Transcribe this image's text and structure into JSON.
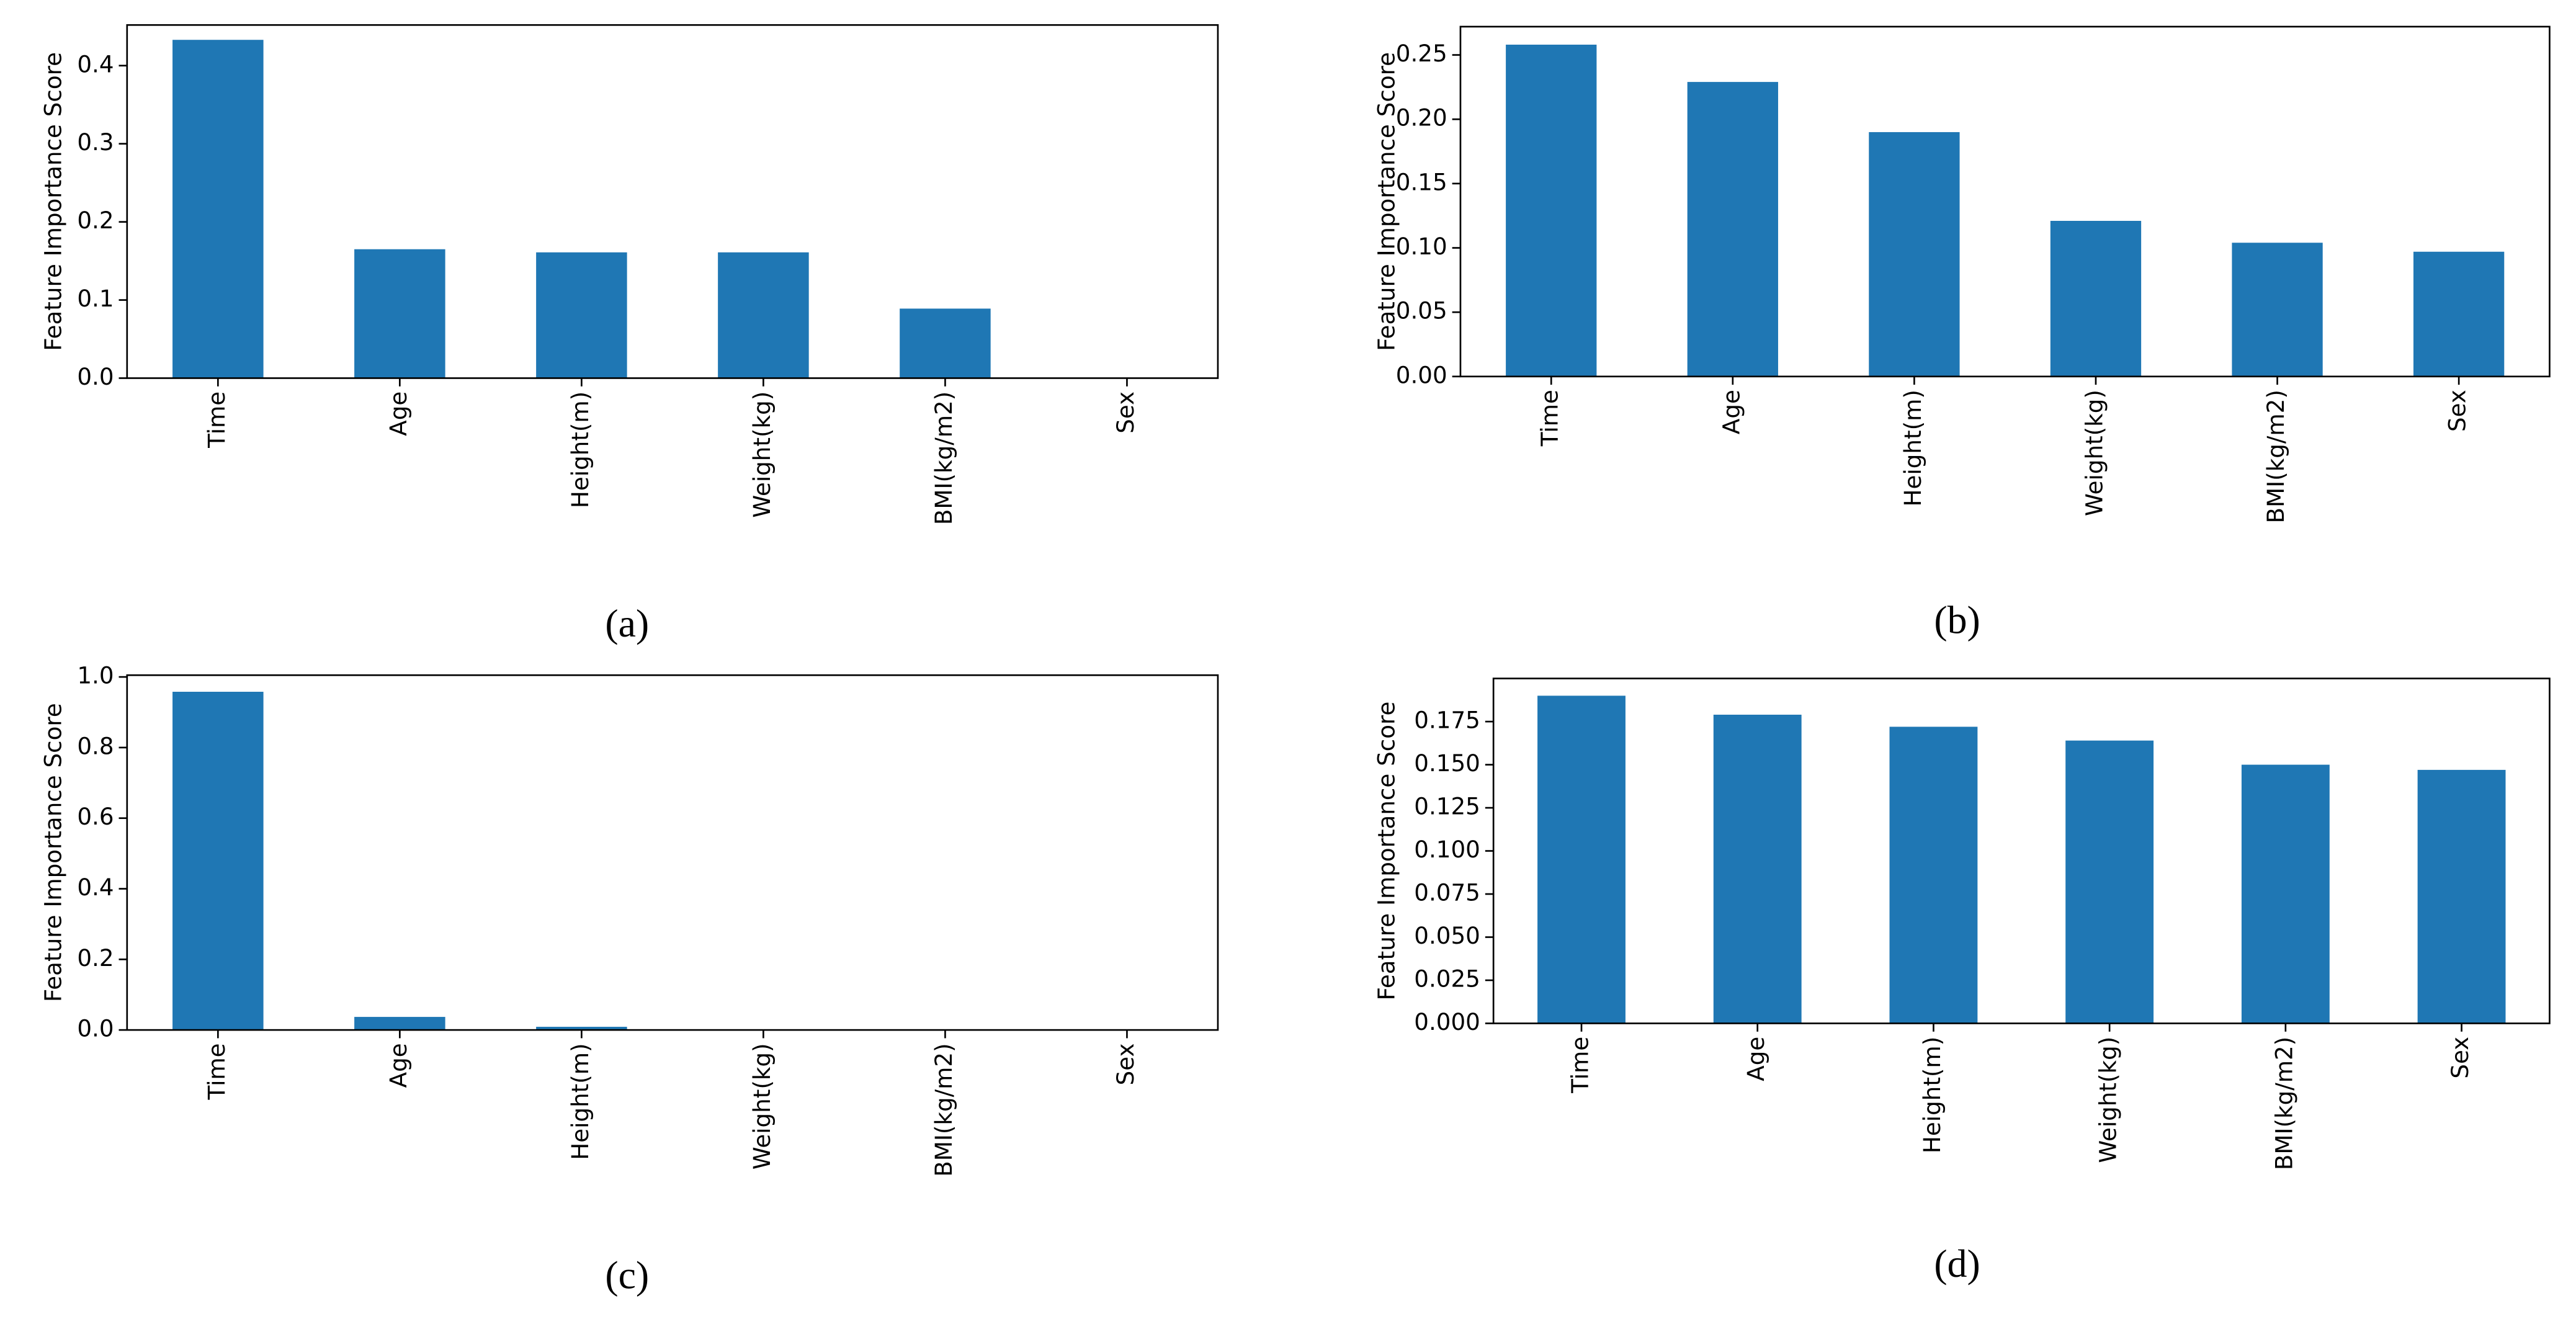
{
  "chart_data": [
    {
      "type": "bar",
      "caption": "(a)",
      "y_label": "Feature Importance Score",
      "categories": [
        "Time",
        "Age",
        "Height(m)",
        "Weight(kg)",
        "BMI(kg/m2)",
        "Sex"
      ],
      "values": [
        0.433,
        0.165,
        0.161,
        0.161,
        0.089,
        0
      ],
      "color": "#1f77b4",
      "ylim": [
        0,
        0.452
      ],
      "yticks": [
        {
          "value": 0,
          "label": "0.0"
        },
        0.1,
        0.2,
        0.3,
        0.4
      ]
    },
    {
      "type": "bar",
      "caption": "(b)",
      "y_label": "Feature Importance Score",
      "categories": [
        "Time",
        "Age",
        "Height(m)",
        "Weight(kg)",
        "BMI(kg/m2)",
        "Sex"
      ],
      "values": [
        0.258,
        0.229,
        0.19,
        0.121,
        0.104,
        0.097
      ],
      "color": "#1f77b4",
      "ylim": [
        0,
        0.272
      ],
      "yticks": [
        {
          "value": 0,
          "label": "0.00"
        },
        0.05,
        {
          "value": 0.1,
          "label": "0.10"
        },
        0.15,
        {
          "value": 0.2,
          "label": "0.20"
        },
        0.25
      ]
    },
    {
      "type": "bar",
      "caption": "(c)",
      "y_label": "Feature Importance Score",
      "categories": [
        "Time",
        "Age",
        "Height(m)",
        "Weight(kg)",
        "BMI(kg/m2)",
        "Sex"
      ],
      "values": [
        0.958,
        0.037,
        0.009,
        0,
        0,
        0
      ],
      "color": "#1f77b4",
      "ylim": [
        0,
        1.005
      ],
      "yticks": [
        {
          "value": 0,
          "label": "0.0"
        },
        0.2,
        0.4,
        0.6,
        0.8,
        {
          "value": 1,
          "label": "1.0"
        }
      ]
    },
    {
      "type": "bar",
      "caption": "(d)",
      "y_label": "Feature Importance Score",
      "categories": [
        "Time",
        "Age",
        "Height(m)",
        "Weight(kg)",
        "BMI(kg/m2)",
        "Sex"
      ],
      "values": [
        0.19,
        0.179,
        0.172,
        0.164,
        0.15,
        0.147
      ],
      "color": "#1f77b4",
      "ylim": [
        0,
        0.2
      ],
      "yticks": [
        {
          "value": 0,
          "label": "0.000"
        },
        {
          "value": 0.025,
          "label": "0.025"
        },
        {
          "value": 0.05,
          "label": "0.050"
        },
        {
          "value": 0.075,
          "label": "0.075"
        },
        {
          "value": 0.1,
          "label": "0.100"
        },
        {
          "value": 0.125,
          "label": "0.125"
        },
        {
          "value": 0.15,
          "label": "0.150"
        },
        {
          "value": 0.175,
          "label": "0.175"
        }
      ]
    }
  ]
}
